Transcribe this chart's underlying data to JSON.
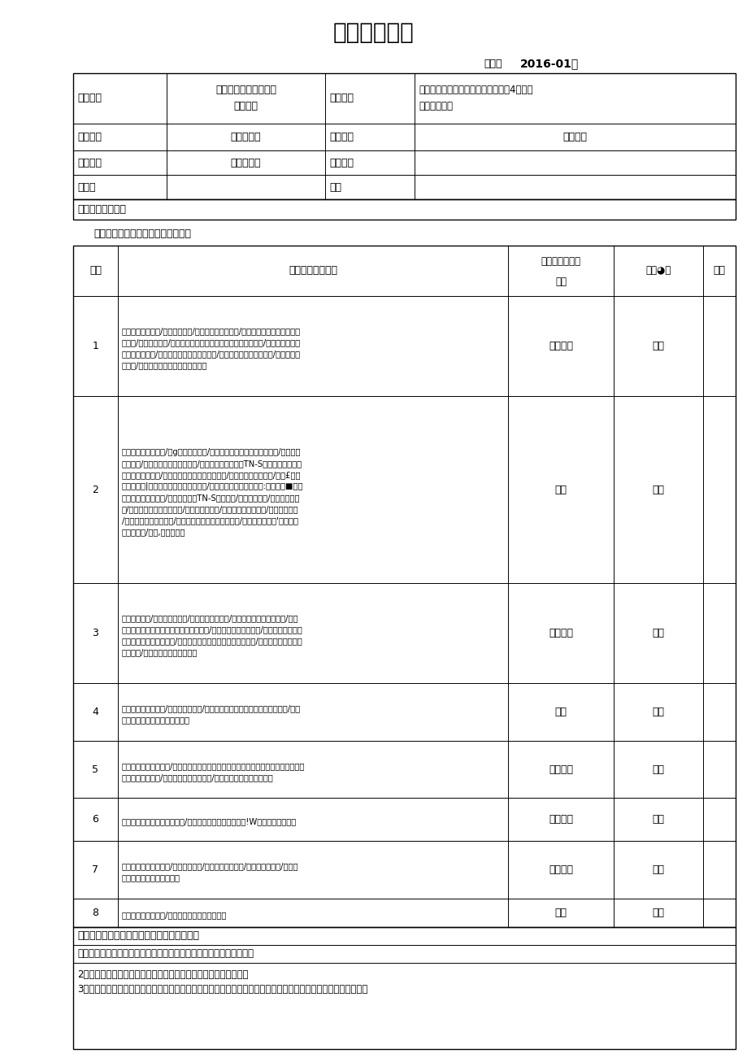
{
  "title": "安全技术交底",
  "code_label": "编号：",
  "code_value": "2016-01号",
  "bg_color": "#ffffff",
  "text_color": "#000000",
  "row1_col1": "工程名称",
  "row1_col2a": "田市跨永安溪、台金高",
  "row1_col2b": "速特大桥",
  "row1_col3": "施工单位",
  "row1_col4a": "中铁二局第二工程有限公司金台铁路4标项目",
  "row1_col4b": "经理部一分部",
  "row2_col1": "作业班组",
  "row2_col2": "冲击钻班组",
  "row2_col3": "施工部位",
  "row2_col4": "桥梁桩基",
  "row3_col1": "工作内容",
  "row3_col2": "钻孔桩施工",
  "row3_col3": "交底时间",
  "row4_col1": "交底人",
  "row4_col3": "职务",
  "sec_content": "安全技术交底内容",
  "subsection": "一、存在的危险部位及容易产生后果",
  "tbl_hdr0": "序号",
  "tbl_hdr1": "存在主要危险因素",
  "tbl_hdr2a": "可能遭成的危害",
  "tbl_hdr2b": "事件",
  "tbl_hdr3": "风险◕级",
  "tbl_hdr4": "备注",
  "rows": [
    {
      "num": "1",
      "text": "机械进场永投验收/机械带带作业/操作算骏员无证上岗/施工场地不平整或涨泥未及时清理/场地碾压不实/吊车、泵车支场未设置方木或钢板牢固支撑/现场领工员未坚持跟班指挥作业/机械安设位置、方向不正确/作业人员进就关经过培训/运行使用操作不当/设备陈旧老化，安全性能主等。",
      "hazard": "机械倾覆",
      "risk": "低度",
      "nlines": 7
    },
    {
      "num": "2",
      "text": "主电缆未使用五芯线/迫g接地少于三答/照明灯具金属外壳来接接地保护/知明灯架使用铜斯/空气开关替代漏电保电销/用电设备接地域未与TN-S系统有效发域，配电线路老化、破皮/用电设备与电地、开关不匹配/小型机具电缆至插头/使用£属壁替代场所器|慢置接地线线行不符合要求/过成电缆未密管，晨舞舞:吆喝摩熬■嘉续等舞嚣鲮亲符合要求/配电及路云接TN-S系统设置/用电线路老化/灯具外壳案接地/电线等缠在锈松、钢的上/乱拉、乱接电线/「保险丝不符合要求/漏电开关失灵/机具设备未接地或接至/移动用电设备接电未使用插头/接头包扎不好，'未断电推拉电器设备/电线,活地抬放等",
      "hazard": "触电",
      "risk": "中度",
      "nlines": 13
    },
    {
      "num": "3",
      "text": "钢佳绳有缺陷/卷扬机刹车失灵/检缮钻机随意推物/作业人员矩孔口距离过近/钢筋笼、导管吊放钩未牢固及吊点不若合要求/吊车辅丝绳不符合要求/铜筋影钢筋焊接质量不补合要求，强度不足/钢丝的起士翻步不足或紧用强鼻不足/钢筋笼、导管号敌无专人指痛/作业人员未强戴安全帽。",
      "hazard": "物体打击",
      "risk": "低度",
      "nlines": 7
    },
    {
      "num": "4",
      "text": "检修钻机未拴安全带/虚孔未及时回填/弃浆池、循环池未设置护栏及警示标志/灌注碰时作业人员逍规站漏斗操作等",
      "hazard": "整落",
      "risk": "低度",
      "nlines": 4
    },
    {
      "num": "5",
      "text": "钻机皮劳转动部分外漏/钢丝地固结处的夹子或末等强度安装了作业人员跨培正在运转的卷扬机、钢丝绳/钻到作业人员无证上周/下钢筋笼、渗浇筑时无人指",
      "hazard": "机械伤害",
      "risk": "低度",
      "nlines": 4
    },
    {
      "num": "6",
      "text": "桩基施工未设置交通安全标志/现场作业时过往车辆簸籬稼!W罐产作山现场未好",
      "hazard": "交通事故",
      "risk": "低度",
      "nlines": 3
    },
    {
      "num": "7",
      "text": "场他未平整、承载力军/设备带病作业/操作人且无迁条件/钢丝匾请台要求/吊装作业不规蔸建成规范要来等。",
      "hazard": "起重伤害",
      "risk": "中度",
      "nlines": 4
    },
    {
      "num": "8",
      "text": "未严格执行作息时间/现场未配备防暑降温药品等",
      "hazard": "中黑",
      "risk": "中度",
      "nlines": 2
    }
  ],
  "footer0": "二、作业中应该注意的安全本项（基本规定）",
  "footer1": "．所有作业人员必须接受安全培训教育，经考核合格后方准入场作业。",
  "footer2": "2．该工中必须严格遵守项目部的规章管理制度，严禁违章作业等。",
  "footer3": "3．进入施工现场作业人员必须自觉佩戴安全帽，高空作业时必须系好安全带，并严格遵守各自岗位安全操作规程。"
}
